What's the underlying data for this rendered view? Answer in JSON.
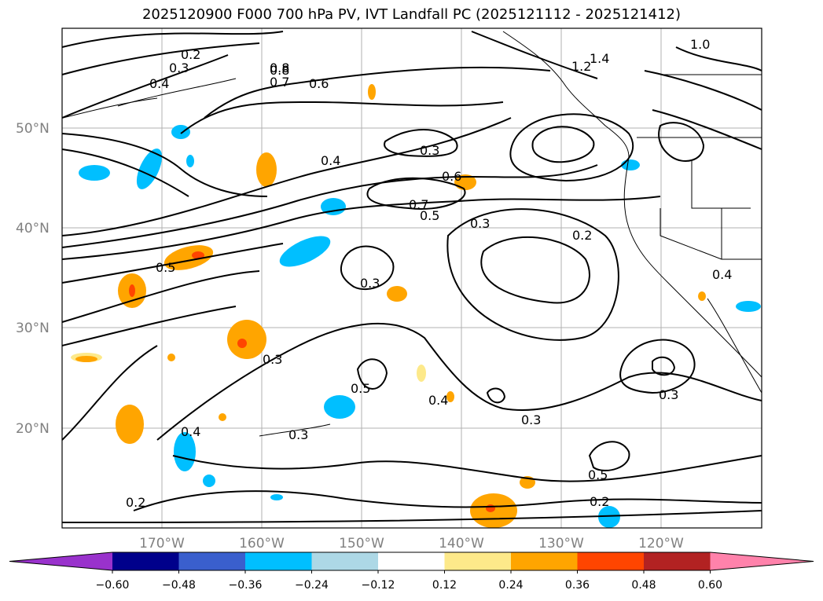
{
  "title": "2025120900 F000 700 hPa PV, IVT Landfall PC (2025121112 - 2025121412)",
  "lat_labels": [
    "50°N",
    "40°N",
    "30°N",
    "20°N"
  ],
  "lon_labels": [
    "170°W",
    "160°W",
    "150°W",
    "140°W",
    "130°W",
    "120°W"
  ],
  "colorbar": {
    "ticks": [
      "−0.60",
      "−0.48",
      "−0.36",
      "−0.24",
      "−0.12",
      "0.12",
      "0.24",
      "0.36",
      "0.48",
      "0.60"
    ],
    "colors": [
      "#9932cc",
      "#00008b",
      "#3a5fcd",
      "#00bfff",
      "#add8e6",
      "#ffffff",
      "#fde98a",
      "#ffa500",
      "#ff4500",
      "#b22222",
      "#ff82ab"
    ]
  },
  "contour_labels": [
    "0.2",
    "0.3",
    "0.4",
    "0.5",
    "0.6",
    "0.7",
    "0.8",
    "1.0",
    "1.2",
    "1.4",
    "0.3",
    "0.4",
    "0.6",
    "0.7",
    "0.5",
    "0.3",
    "0.2",
    "0.3",
    "0.3",
    "0.4",
    "0.5",
    "0.3",
    "0.5",
    "0.2",
    "0.3",
    "0.4",
    "0.2",
    "0.3",
    "0.8",
    "0.4"
  ]
}
